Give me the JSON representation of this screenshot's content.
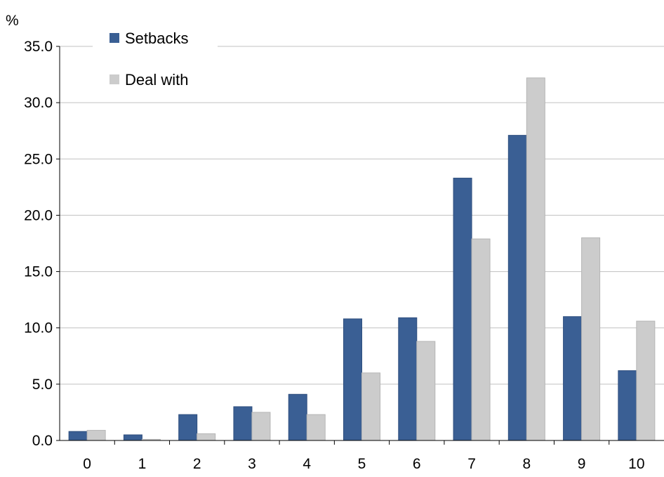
{
  "chart_data": {
    "type": "bar",
    "ylabel": "%",
    "ylim": [
      0,
      35
    ],
    "yticks": [
      "0.0",
      "5.0",
      "10.0",
      "15.0",
      "20.0",
      "25.0",
      "30.0",
      "35.0"
    ],
    "ytick_values": [
      0,
      5,
      10,
      15,
      20,
      25,
      30,
      35
    ],
    "categories": [
      "0",
      "1",
      "2",
      "3",
      "4",
      "5",
      "6",
      "7",
      "8",
      "9",
      "10"
    ],
    "series": [
      {
        "name": "Setbacks",
        "color": "#3a5f94",
        "values": [
          0.8,
          0.5,
          2.3,
          3.0,
          4.1,
          10.8,
          10.9,
          23.3,
          27.1,
          11.0,
          6.2
        ]
      },
      {
        "name": "Deal with",
        "color": "#cccccc",
        "values": [
          0.9,
          0.1,
          0.6,
          2.5,
          2.3,
          6.0,
          8.8,
          17.9,
          32.2,
          18.0,
          10.6
        ]
      }
    ],
    "grid": true,
    "legend_position": "top-left"
  }
}
